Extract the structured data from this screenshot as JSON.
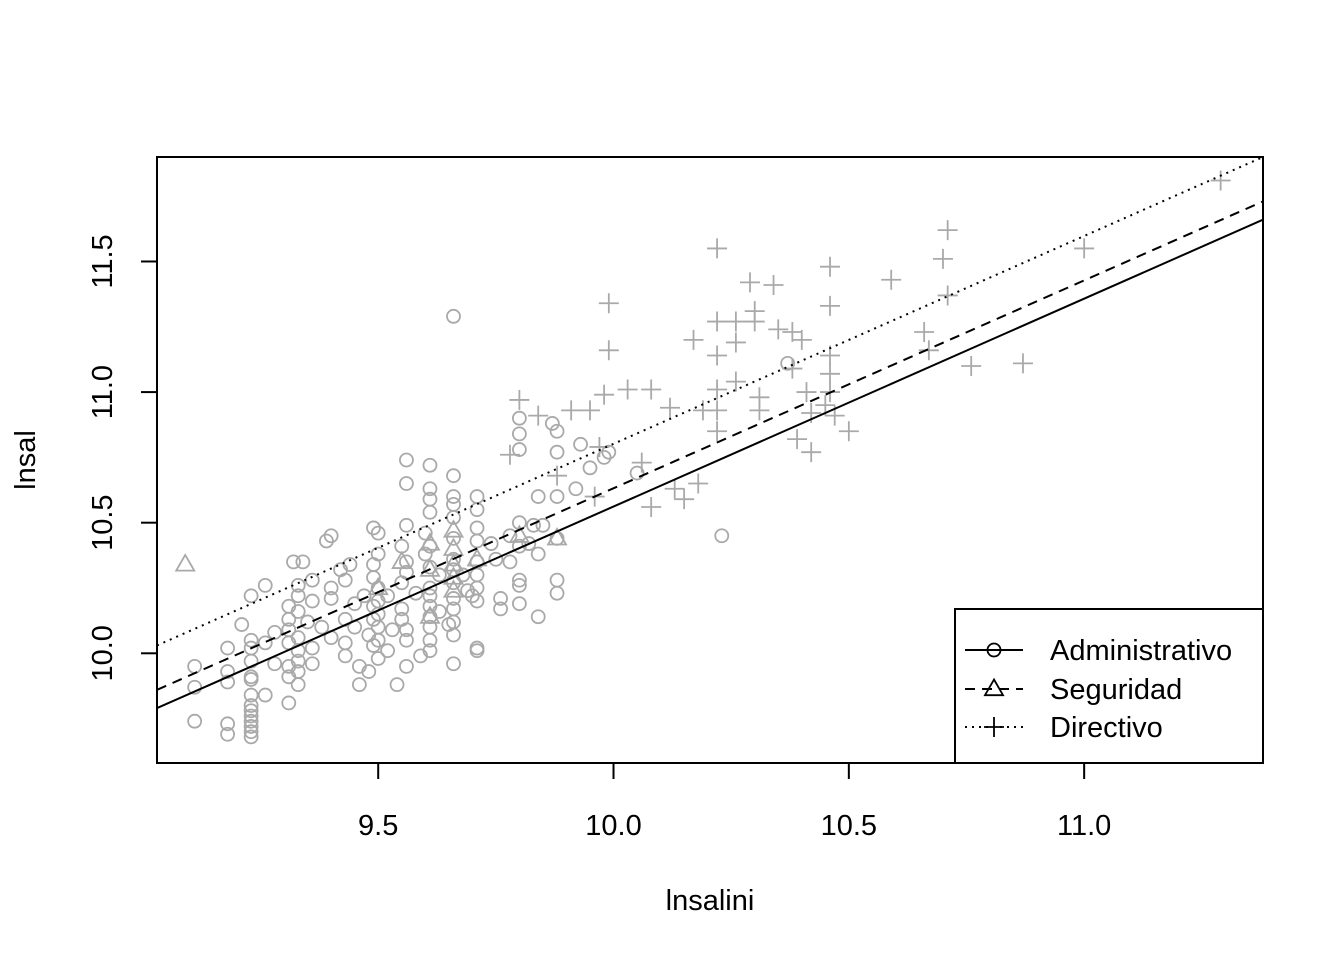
{
  "chart_data": {
    "type": "scatter",
    "title": "",
    "xlabel": "lnsalini",
    "ylabel": "lnsal",
    "xlim": [
      9.03,
      11.38
    ],
    "ylim": [
      9.58,
      11.9
    ],
    "xticks": [
      "9.5",
      "10.0",
      "10.5",
      "11.0"
    ],
    "yticks": [
      "10.0",
      "10.5",
      "11.0",
      "11.5"
    ],
    "xtick_values": [
      9.5,
      10.0,
      10.5,
      11.0
    ],
    "ytick_values": [
      10.0,
      10.5,
      11.0,
      11.5
    ],
    "grid": false,
    "legend_position": "bottom-right",
    "colors": {
      "points": "#a9a9a9",
      "lines": "#000000",
      "frame": "#000000"
    },
    "series": [
      {
        "name": "Administrativo",
        "marker": "circle",
        "points": [
          [
            9.11,
            9.95
          ],
          [
            9.11,
            9.87
          ],
          [
            9.11,
            9.74
          ],
          [
            9.18,
            9.93
          ],
          [
            9.18,
            10.02
          ],
          [
            9.18,
            9.89
          ],
          [
            9.18,
            9.73
          ],
          [
            9.18,
            9.69
          ],
          [
            9.21,
            10.11
          ],
          [
            9.23,
            10.22
          ],
          [
            9.23,
            10.05
          ],
          [
            9.23,
            10.02
          ],
          [
            9.23,
            9.97
          ],
          [
            9.23,
            9.91
          ],
          [
            9.23,
            9.9
          ],
          [
            9.23,
            9.84
          ],
          [
            9.23,
            9.8
          ],
          [
            9.23,
            9.78
          ],
          [
            9.23,
            9.76
          ],
          [
            9.23,
            9.74
          ],
          [
            9.23,
            9.72
          ],
          [
            9.23,
            9.7
          ],
          [
            9.23,
            9.68
          ],
          [
            9.26,
            10.26
          ],
          [
            9.26,
            10.04
          ],
          [
            9.26,
            9.84
          ],
          [
            9.28,
            10.08
          ],
          [
            9.28,
            9.96
          ],
          [
            9.31,
            10.18
          ],
          [
            9.31,
            10.13
          ],
          [
            9.31,
            10.09
          ],
          [
            9.31,
            10.04
          ],
          [
            9.31,
            9.95
          ],
          [
            9.31,
            9.91
          ],
          [
            9.31,
            9.81
          ],
          [
            9.32,
            10.35
          ],
          [
            9.33,
            10.26
          ],
          [
            9.33,
            10.22
          ],
          [
            9.33,
            10.16
          ],
          [
            9.33,
            10.06
          ],
          [
            9.33,
            10.01
          ],
          [
            9.33,
            9.97
          ],
          [
            9.33,
            9.93
          ],
          [
            9.33,
            9.88
          ],
          [
            9.34,
            10.35
          ],
          [
            9.35,
            10.12
          ],
          [
            9.36,
            10.28
          ],
          [
            9.36,
            10.2
          ],
          [
            9.36,
            10.02
          ],
          [
            9.36,
            9.96
          ],
          [
            9.38,
            10.1
          ],
          [
            9.39,
            10.43
          ],
          [
            9.4,
            10.45
          ],
          [
            9.4,
            10.25
          ],
          [
            9.4,
            10.21
          ],
          [
            9.4,
            10.06
          ],
          [
            9.42,
            10.32
          ],
          [
            9.43,
            10.28
          ],
          [
            9.43,
            10.13
          ],
          [
            9.43,
            10.04
          ],
          [
            9.43,
            9.99
          ],
          [
            9.44,
            10.34
          ],
          [
            9.45,
            10.19
          ],
          [
            9.45,
            10.1
          ],
          [
            9.46,
            9.95
          ],
          [
            9.46,
            9.88
          ],
          [
            9.47,
            10.22
          ],
          [
            9.48,
            10.07
          ],
          [
            9.48,
            9.93
          ],
          [
            9.49,
            10.48
          ],
          [
            9.49,
            10.34
          ],
          [
            9.49,
            10.29
          ],
          [
            9.49,
            10.18
          ],
          [
            9.49,
            10.13
          ],
          [
            9.49,
            10.03
          ],
          [
            9.5,
            10.46
          ],
          [
            9.5,
            10.38
          ],
          [
            9.5,
            10.25
          ],
          [
            9.5,
            10.2
          ],
          [
            9.5,
            10.15
          ],
          [
            9.5,
            10.1
          ],
          [
            9.5,
            10.05
          ],
          [
            9.5,
            9.98
          ],
          [
            9.52,
            10.22
          ],
          [
            9.52,
            10.01
          ],
          [
            9.53,
            10.09
          ],
          [
            9.54,
            9.88
          ],
          [
            9.55,
            10.41
          ],
          [
            9.55,
            10.27
          ],
          [
            9.55,
            10.17
          ],
          [
            9.55,
            10.13
          ],
          [
            9.56,
            10.74
          ],
          [
            9.56,
            10.65
          ],
          [
            9.56,
            10.49
          ],
          [
            9.56,
            10.35
          ],
          [
            9.56,
            10.31
          ],
          [
            9.56,
            10.09
          ],
          [
            9.56,
            10.05
          ],
          [
            9.56,
            9.95
          ],
          [
            9.58,
            10.23
          ],
          [
            9.59,
            9.99
          ],
          [
            9.6,
            10.46
          ],
          [
            9.6,
            10.38
          ],
          [
            9.61,
            10.72
          ],
          [
            9.61,
            10.63
          ],
          [
            9.61,
            10.59
          ],
          [
            9.61,
            10.54
          ],
          [
            9.61,
            10.41
          ],
          [
            9.61,
            10.33
          ],
          [
            9.61,
            10.25
          ],
          [
            9.61,
            10.22
          ],
          [
            9.61,
            10.18
          ],
          [
            9.61,
            10.14
          ],
          [
            9.61,
            10.1
          ],
          [
            9.61,
            10.05
          ],
          [
            9.61,
            10.01
          ],
          [
            9.63,
            10.3
          ],
          [
            9.63,
            10.16
          ],
          [
            9.65,
            10.11
          ],
          [
            9.66,
            11.29
          ],
          [
            9.66,
            10.68
          ],
          [
            9.66,
            10.6
          ],
          [
            9.66,
            10.57
          ],
          [
            9.66,
            10.52
          ],
          [
            9.66,
            10.44
          ],
          [
            9.66,
            10.36
          ],
          [
            9.66,
            10.32
          ],
          [
            9.66,
            10.27
          ],
          [
            9.66,
            10.21
          ],
          [
            9.66,
            10.17
          ],
          [
            9.66,
            10.12
          ],
          [
            9.66,
            10.07
          ],
          [
            9.66,
            9.96
          ],
          [
            9.68,
            10.3
          ],
          [
            9.69,
            10.24
          ],
          [
            9.7,
            10.22
          ],
          [
            9.71,
            10.6
          ],
          [
            9.71,
            10.55
          ],
          [
            9.71,
            10.48
          ],
          [
            9.71,
            10.43
          ],
          [
            9.71,
            10.35
          ],
          [
            9.71,
            10.3
          ],
          [
            9.71,
            10.25
          ],
          [
            9.71,
            10.2
          ],
          [
            9.71,
            10.02
          ],
          [
            9.71,
            10.01
          ],
          [
            9.74,
            10.42
          ],
          [
            9.75,
            10.36
          ],
          [
            9.76,
            10.17
          ],
          [
            9.76,
            10.21
          ],
          [
            9.78,
            10.45
          ],
          [
            9.78,
            10.35
          ],
          [
            9.8,
            10.9
          ],
          [
            9.8,
            10.84
          ],
          [
            9.8,
            10.78
          ],
          [
            9.8,
            10.5
          ],
          [
            9.8,
            10.41
          ],
          [
            9.8,
            10.28
          ],
          [
            9.8,
            10.26
          ],
          [
            9.8,
            10.19
          ],
          [
            9.82,
            10.42
          ],
          [
            9.83,
            10.49
          ],
          [
            9.84,
            10.38
          ],
          [
            9.84,
            10.14
          ],
          [
            9.84,
            10.6
          ],
          [
            9.85,
            10.49
          ],
          [
            9.87,
            10.88
          ],
          [
            9.88,
            10.85
          ],
          [
            9.88,
            10.77
          ],
          [
            9.88,
            10.6
          ],
          [
            9.88,
            10.44
          ],
          [
            9.88,
            10.28
          ],
          [
            9.88,
            10.23
          ],
          [
            9.92,
            10.63
          ],
          [
            9.93,
            10.8
          ],
          [
            9.95,
            10.71
          ],
          [
            9.98,
            10.75
          ],
          [
            9.99,
            10.77
          ],
          [
            10.05,
            10.69
          ],
          [
            10.23,
            10.45
          ],
          [
            10.37,
            11.11
          ]
        ]
      },
      {
        "name": "Seguridad",
        "marker": "triangle",
        "points": [
          [
            9.09,
            10.34
          ],
          [
            9.5,
            10.25
          ],
          [
            9.55,
            10.35
          ],
          [
            9.61,
            10.42
          ],
          [
            9.61,
            10.32
          ],
          [
            9.61,
            10.14
          ],
          [
            9.66,
            10.47
          ],
          [
            9.66,
            10.4
          ],
          [
            9.66,
            10.34
          ],
          [
            9.66,
            10.29
          ],
          [
            9.66,
            10.24
          ],
          [
            9.71,
            10.36
          ],
          [
            9.8,
            10.45
          ],
          [
            9.88,
            10.44
          ]
        ]
      },
      {
        "name": "Directivo",
        "marker": "plus",
        "points": [
          [
            9.78,
            10.76
          ],
          [
            9.8,
            10.97
          ],
          [
            9.84,
            10.91
          ],
          [
            9.88,
            10.68
          ],
          [
            9.91,
            10.93
          ],
          [
            9.95,
            10.93
          ],
          [
            9.96,
            10.6
          ],
          [
            9.97,
            10.79
          ],
          [
            9.98,
            10.99
          ],
          [
            9.99,
            11.34
          ],
          [
            9.99,
            11.16
          ],
          [
            10.03,
            11.01
          ],
          [
            10.06,
            10.73
          ],
          [
            10.08,
            11.01
          ],
          [
            10.08,
            10.56
          ],
          [
            10.12,
            10.94
          ],
          [
            10.13,
            10.63
          ],
          [
            10.15,
            10.59
          ],
          [
            10.17,
            11.2
          ],
          [
            10.18,
            10.65
          ],
          [
            10.19,
            10.93
          ],
          [
            10.22,
            11.55
          ],
          [
            10.22,
            11.27
          ],
          [
            10.22,
            11.14
          ],
          [
            10.22,
            11.01
          ],
          [
            10.22,
            10.93
          ],
          [
            10.22,
            10.85
          ],
          [
            10.26,
            11.27
          ],
          [
            10.26,
            11.19
          ],
          [
            10.26,
            11.04
          ],
          [
            10.29,
            11.42
          ],
          [
            10.3,
            11.31
          ],
          [
            10.3,
            11.27
          ],
          [
            10.31,
            10.98
          ],
          [
            10.31,
            10.93
          ],
          [
            10.34,
            11.41
          ],
          [
            10.35,
            11.24
          ],
          [
            10.38,
            11.23
          ],
          [
            10.38,
            11.09
          ],
          [
            10.39,
            10.82
          ],
          [
            10.4,
            11.2
          ],
          [
            10.41,
            11.0
          ],
          [
            10.42,
            10.92
          ],
          [
            10.42,
            10.77
          ],
          [
            10.45,
            10.95
          ],
          [
            10.46,
            11.48
          ],
          [
            10.46,
            11.33
          ],
          [
            10.46,
            11.14
          ],
          [
            10.46,
            11.07
          ],
          [
            10.46,
            11.0
          ],
          [
            10.47,
            10.91
          ],
          [
            10.5,
            10.85
          ],
          [
            10.59,
            11.43
          ],
          [
            10.66,
            11.23
          ],
          [
            10.67,
            11.16
          ],
          [
            10.7,
            11.51
          ],
          [
            10.71,
            11.62
          ],
          [
            10.71,
            11.37
          ],
          [
            10.76,
            11.1
          ],
          [
            10.87,
            11.11
          ],
          [
            11.0,
            11.55
          ],
          [
            11.29,
            11.81
          ]
        ]
      }
    ],
    "fit_lines": [
      {
        "name": "Administrativo",
        "style": "solid",
        "x": [
          9.03,
          11.38
        ],
        "y": [
          9.79,
          11.66
        ]
      },
      {
        "name": "Seguridad",
        "style": "dashed",
        "x": [
          9.03,
          11.38
        ],
        "y": [
          9.86,
          11.73
        ]
      },
      {
        "name": "Directivo",
        "style": "dotted",
        "x": [
          9.03,
          11.38
        ],
        "y": [
          10.03,
          11.9
        ]
      }
    ]
  }
}
